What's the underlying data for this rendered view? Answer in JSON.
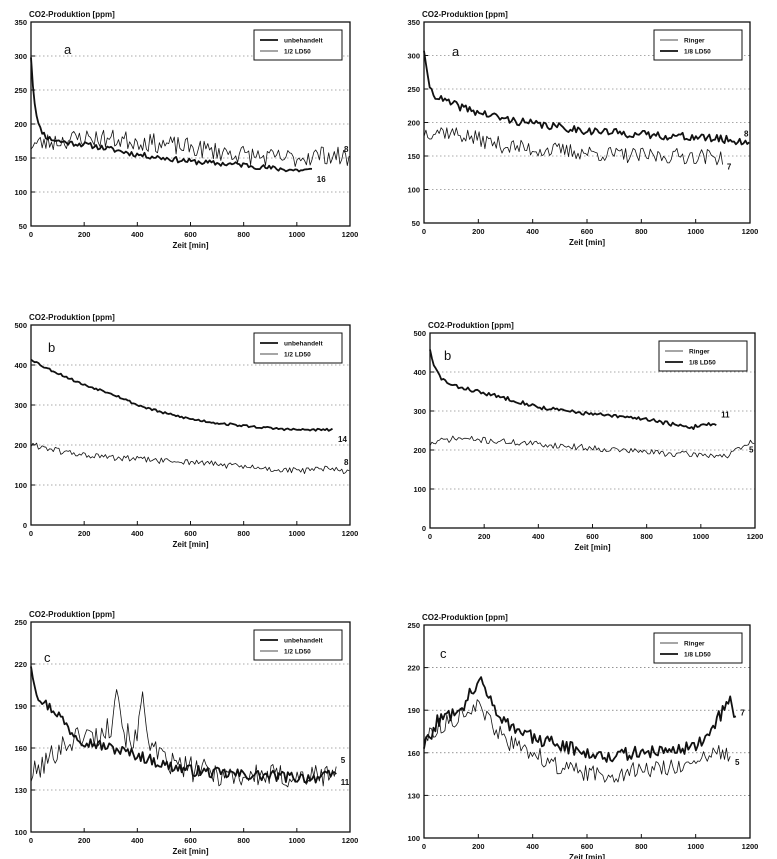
{
  "chart_data": [
    {
      "id": "left-a",
      "type": "line",
      "panel_letter": "a",
      "ylabel": "CO2-Produktion [ppm]",
      "xlabel": "Zeit [min]",
      "xlim": [
        0,
        1200
      ],
      "ylim": [
        50,
        350
      ],
      "xticks": [
        0,
        200,
        400,
        600,
        800,
        1000,
        1200
      ],
      "yticks": [
        50,
        100,
        150,
        200,
        250,
        300,
        350
      ],
      "grid": "horizontal-dotted",
      "legend_position": "top-right",
      "series": [
        {
          "name": "unbehandelt",
          "style": "thick",
          "end_label": "16",
          "noise": 4,
          "seed": 11,
          "x": [
            0,
            10,
            30,
            60,
            100,
            150,
            200,
            300,
            400,
            500,
            600,
            700,
            800,
            900,
            1000,
            1060
          ],
          "y": [
            300,
            240,
            195,
            180,
            175,
            172,
            170,
            163,
            155,
            150,
            145,
            142,
            140,
            135,
            132,
            132
          ]
        },
        {
          "name": "1/2 LD50",
          "style": "thin",
          "end_label": "8",
          "noise": 14,
          "seed": 23,
          "x": [
            0,
            50,
            100,
            200,
            300,
            400,
            500,
            600,
            700,
            800,
            900,
            1000,
            1100,
            1200
          ],
          "y": [
            170,
            172,
            175,
            180,
            178,
            175,
            170,
            165,
            160,
            155,
            150,
            150,
            155,
            150
          ]
        }
      ]
    },
    {
      "id": "right-a",
      "type": "line",
      "panel_letter": "a",
      "ylabel": "CO2-Produktion [ppm]",
      "xlabel": "Zeit [min]",
      "xlim": [
        0,
        1200
      ],
      "ylim": [
        50,
        350
      ],
      "xticks": [
        0,
        200,
        400,
        600,
        800,
        1000,
        1200
      ],
      "yticks": [
        50,
        100,
        150,
        200,
        250,
        300,
        350
      ],
      "grid": "horizontal-dotted",
      "legend_position": "top-right",
      "series": [
        {
          "name": "Ringer",
          "style": "thin",
          "end_label": "7",
          "noise": 12,
          "seed": 37,
          "x": [
            0,
            50,
            100,
            200,
            300,
            400,
            500,
            600,
            700,
            800,
            900,
            1000,
            1100
          ],
          "y": [
            185,
            188,
            185,
            175,
            165,
            160,
            158,
            155,
            152,
            150,
            150,
            150,
            148
          ]
        },
        {
          "name": "1/8 LD50",
          "style": "thick",
          "end_label": "8",
          "noise": 6,
          "seed": 41,
          "x": [
            0,
            10,
            30,
            60,
            100,
            200,
            300,
            400,
            500,
            600,
            700,
            800,
            900,
            1000,
            1100,
            1200
          ],
          "y": [
            310,
            270,
            245,
            235,
            228,
            215,
            205,
            198,
            193,
            188,
            185,
            182,
            180,
            178,
            175,
            170
          ]
        }
      ]
    },
    {
      "id": "left-b",
      "type": "line",
      "panel_letter": "b",
      "ylabel": "CO2-Produktion [ppm]",
      "xlabel": "Zeit [min]",
      "xlim": [
        0,
        1200
      ],
      "ylim": [
        0,
        500
      ],
      "xticks": [
        0,
        200,
        400,
        600,
        800,
        1000,
        1200
      ],
      "yticks": [
        0,
        100,
        200,
        300,
        400,
        500
      ],
      "grid": "horizontal-dotted",
      "legend_position": "top-right",
      "series": [
        {
          "name": "unbehandelt",
          "style": "thick",
          "end_label": "14",
          "noise": 3,
          "seed": 53,
          "x": [
            0,
            50,
            100,
            200,
            300,
            400,
            500,
            600,
            700,
            800,
            900,
            1000,
            1140
          ],
          "y": [
            415,
            395,
            380,
            350,
            330,
            300,
            280,
            265,
            255,
            248,
            242,
            238,
            238
          ]
        },
        {
          "name": "1/2 LD50",
          "style": "thin",
          "end_label": "8",
          "noise": 8,
          "seed": 61,
          "x": [
            0,
            50,
            100,
            200,
            300,
            400,
            500,
            600,
            700,
            800,
            900,
            1000,
            1100,
            1200
          ],
          "y": [
            200,
            195,
            185,
            175,
            168,
            165,
            160,
            158,
            152,
            145,
            140,
            135,
            140,
            135
          ]
        }
      ]
    },
    {
      "id": "right-b",
      "type": "line",
      "panel_letter": "b",
      "ylabel": "CO2-Produktion [ppm]",
      "xlabel": "Zeit [min]",
      "xlim": [
        0,
        1200
      ],
      "ylim": [
        0,
        500
      ],
      "xticks": [
        0,
        200,
        400,
        600,
        800,
        1000,
        1200
      ],
      "yticks": [
        0,
        100,
        200,
        300,
        400,
        500
      ],
      "grid": "horizontal-dotted",
      "legend_position": "top-right",
      "series": [
        {
          "name": "Ringer",
          "style": "thin",
          "end_label": "5",
          "noise": 8,
          "seed": 71,
          "x": [
            0,
            50,
            100,
            200,
            300,
            400,
            500,
            600,
            700,
            800,
            900,
            1000,
            1100,
            1200
          ],
          "y": [
            215,
            225,
            230,
            225,
            220,
            215,
            210,
            205,
            200,
            195,
            190,
            188,
            185,
            225
          ]
        },
        {
          "name": "1/8 LD50",
          "style": "thick",
          "end_label": "11",
          "noise": 5,
          "seed": 83,
          "x": [
            0,
            10,
            40,
            80,
            150,
            200,
            300,
            400,
            500,
            600,
            700,
            800,
            900,
            960,
            1000,
            1060
          ],
          "y": [
            460,
            420,
            385,
            365,
            355,
            345,
            330,
            310,
            300,
            292,
            285,
            280,
            265,
            255,
            265,
            268
          ]
        }
      ]
    },
    {
      "id": "left-c",
      "type": "line",
      "panel_letter": "c",
      "ylabel": "CO2-Produktion [ppm]",
      "xlabel": "Zeit [min]",
      "xlim": [
        0,
        1200
      ],
      "ylim": [
        100,
        250
      ],
      "xticks": [
        0,
        200,
        400,
        600,
        800,
        1000,
        1200
      ],
      "yticks": [
        100,
        130,
        160,
        190,
        220,
        250
      ],
      "grid": "horizontal-dotted",
      "legend_position": "top-right",
      "series": [
        {
          "name": "unbehandelt",
          "style": "thick",
          "end_label": "11",
          "noise": 4,
          "seed": 97,
          "x": [
            0,
            20,
            50,
            100,
            150,
            200,
            300,
            400,
            500,
            600,
            700,
            800,
            900,
            1000,
            1100,
            1150
          ],
          "y": [
            220,
            200,
            192,
            185,
            172,
            165,
            160,
            155,
            148,
            144,
            142,
            141,
            140,
            139,
            139,
            142
          ]
        },
        {
          "name": "1/2 LD50",
          "style": "thin",
          "end_label": "5",
          "noise": 9,
          "seed": 101,
          "x": [
            0,
            50,
            100,
            150,
            200,
            250,
            300,
            320,
            350,
            400,
            420,
            450,
            500,
            600,
            700,
            800,
            900,
            1000,
            1100,
            1150
          ],
          "y": [
            140,
            148,
            160,
            165,
            170,
            168,
            175,
            210,
            170,
            165,
            200,
            160,
            150,
            145,
            142,
            140,
            140,
            139,
            140,
            145
          ]
        }
      ]
    },
    {
      "id": "right-c",
      "type": "line",
      "panel_letter": "c",
      "ylabel": "CO2-Produktion [ppm]",
      "xlabel": "Zeit [min]",
      "xlim": [
        0,
        1200
      ],
      "ylim": [
        100,
        250
      ],
      "xticks": [
        0,
        200,
        400,
        600,
        800,
        1000,
        1200
      ],
      "yticks": [
        100,
        130,
        160,
        190,
        220,
        250
      ],
      "grid": "horizontal-dotted",
      "legend_position": "top-right",
      "series": [
        {
          "name": "Ringer",
          "style": "thin",
          "end_label": "5",
          "noise": 6,
          "seed": 113,
          "x": [
            0,
            50,
            100,
            150,
            200,
            300,
            400,
            500,
            600,
            700,
            800,
            900,
            1000,
            1080,
            1130
          ],
          "y": [
            170,
            178,
            182,
            190,
            192,
            168,
            160,
            150,
            145,
            145,
            148,
            150,
            152,
            160,
            160
          ]
        },
        {
          "name": "1/8 LD50",
          "style": "thick",
          "end_label": "7",
          "noise": 5,
          "seed": 127,
          "x": [
            0,
            50,
            100,
            150,
            180,
            200,
            250,
            300,
            400,
            500,
            600,
            700,
            800,
            900,
            1000,
            1060,
            1100,
            1130,
            1150
          ],
          "y": [
            165,
            182,
            188,
            195,
            205,
            212,
            195,
            182,
            170,
            166,
            160,
            158,
            160,
            162,
            165,
            175,
            190,
            198,
            182
          ]
        }
      ]
    }
  ]
}
